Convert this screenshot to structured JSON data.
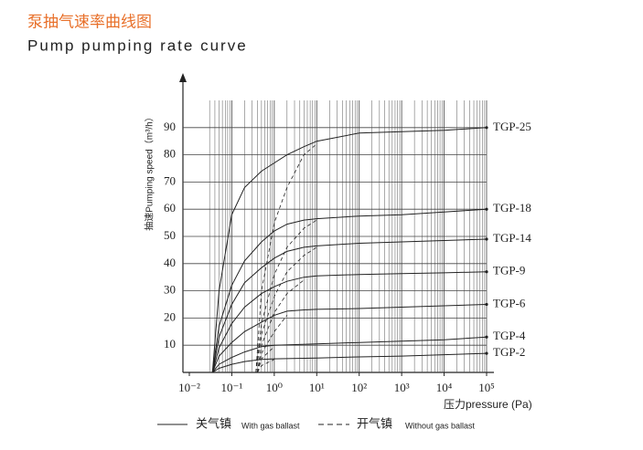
{
  "chart_data": {
    "type": "line",
    "title": "泵抽气速率曲线图",
    "subtitle": "Pump pumping rate curve",
    "y_label": "抽速Pumping speed（m³/h）",
    "x_label": "压力pressure (Pa)",
    "log_x": true,
    "xlim": [
      0.01,
      100000
    ],
    "ylim": [
      0,
      100
    ],
    "xticks": [
      {
        "value": 0.01,
        "label": "10⁻²"
      },
      {
        "value": 0.1,
        "label": "10⁻¹"
      },
      {
        "value": 1,
        "label": "10⁰"
      },
      {
        "value": 10,
        "label": "10¹"
      },
      {
        "value": 100,
        "label": "10²"
      },
      {
        "value": 1000,
        "label": "10³"
      },
      {
        "value": 10000,
        "label": "10⁴"
      },
      {
        "value": 100000,
        "label": "10⁵"
      }
    ],
    "yticks": [
      10,
      20,
      30,
      40,
      50,
      60,
      70,
      80,
      90
    ],
    "grid": true,
    "color": "#222222",
    "legend": [
      {
        "label": "关气镇",
        "note": "With gas ballast",
        "style": "solid"
      },
      {
        "label": "开气镇",
        "note": "Without gas ballast",
        "style": "dashed"
      }
    ],
    "series": [
      {
        "name": "TGP-25",
        "x": [
          0.035,
          0.05,
          0.1,
          0.2,
          0.5,
          1,
          2,
          5,
          10,
          100,
          1000,
          10000,
          100000
        ],
        "values": [
          0,
          30,
          58,
          68,
          74,
          77,
          80,
          83,
          85,
          88,
          88.5,
          89,
          90
        ],
        "x_dashed": [
          0.37,
          0.5,
          1,
          2,
          5,
          10
        ],
        "values_dashed": [
          0,
          30,
          55,
          68,
          80,
          84
        ]
      },
      {
        "name": "TGP-18",
        "x": [
          0.035,
          0.05,
          0.1,
          0.2,
          0.5,
          1,
          2,
          5,
          10,
          100,
          1000,
          10000,
          100000
        ],
        "values": [
          0,
          17,
          32,
          41,
          48,
          52,
          54.5,
          56,
          56.5,
          57.5,
          58,
          59,
          60
        ],
        "x_dashed": [
          0.37,
          0.5,
          1,
          2,
          5,
          10
        ],
        "values_dashed": [
          0,
          18,
          36,
          46,
          53,
          56
        ]
      },
      {
        "name": "TGP-14",
        "x": [
          0.035,
          0.05,
          0.1,
          0.2,
          0.5,
          1,
          2,
          5,
          10,
          100,
          1000,
          10000,
          100000
        ],
        "values": [
          0,
          13,
          25,
          33,
          38.5,
          42,
          44.5,
          46,
          46.5,
          47.5,
          48,
          48.5,
          49
        ],
        "x_dashed": [
          0.37,
          0.5,
          1,
          2,
          5,
          10
        ],
        "values_dashed": [
          0,
          14,
          28,
          37,
          43,
          46
        ]
      },
      {
        "name": "TGP-9",
        "x": [
          0.035,
          0.05,
          0.1,
          0.2,
          0.5,
          1,
          2,
          5,
          10,
          100,
          1000,
          10000,
          100000
        ],
        "values": [
          0,
          9,
          18,
          24,
          29,
          31.5,
          33.5,
          35,
          35.5,
          36,
          36.3,
          36.6,
          37
        ],
        "x_dashed": [
          0.4,
          0.5,
          1,
          2,
          5
        ],
        "values_dashed": [
          0,
          10,
          22,
          29,
          34
        ]
      },
      {
        "name": "TGP-6",
        "x": [
          0.035,
          0.05,
          0.1,
          0.2,
          0.5,
          1,
          2,
          5,
          10,
          100,
          1000,
          10000,
          100000
        ],
        "values": [
          0,
          6,
          11,
          15,
          18.5,
          21,
          22.5,
          23,
          23.2,
          23.5,
          24,
          24.5,
          25
        ],
        "x_dashed": [
          0.4,
          0.5,
          1,
          2
        ],
        "values_dashed": [
          0,
          7,
          15,
          21
        ]
      },
      {
        "name": "TGP-4",
        "x": [
          0.035,
          0.05,
          0.1,
          0.2,
          0.5,
          1,
          10,
          100,
          1000,
          10000,
          100000
        ],
        "values": [
          0,
          3,
          5.5,
          7.5,
          9.5,
          10,
          10.5,
          11,
          11.5,
          12,
          13
        ],
        "x_dashed": [
          0.4,
          0.5,
          1
        ],
        "values_dashed": [
          0,
          5,
          9.5
        ]
      },
      {
        "name": "TGP-2",
        "x": [
          0.035,
          0.05,
          0.1,
          0.2,
          0.5,
          1,
          10,
          100,
          1000,
          10000,
          100000
        ],
        "values": [
          0,
          1.5,
          3,
          4,
          4.8,
          5,
          5.3,
          5.7,
          6,
          6.5,
          7
        ],
        "x_dashed": [
          0.4,
          0.5,
          1
        ],
        "values_dashed": [
          0,
          2.5,
          4.8
        ]
      }
    ]
  }
}
